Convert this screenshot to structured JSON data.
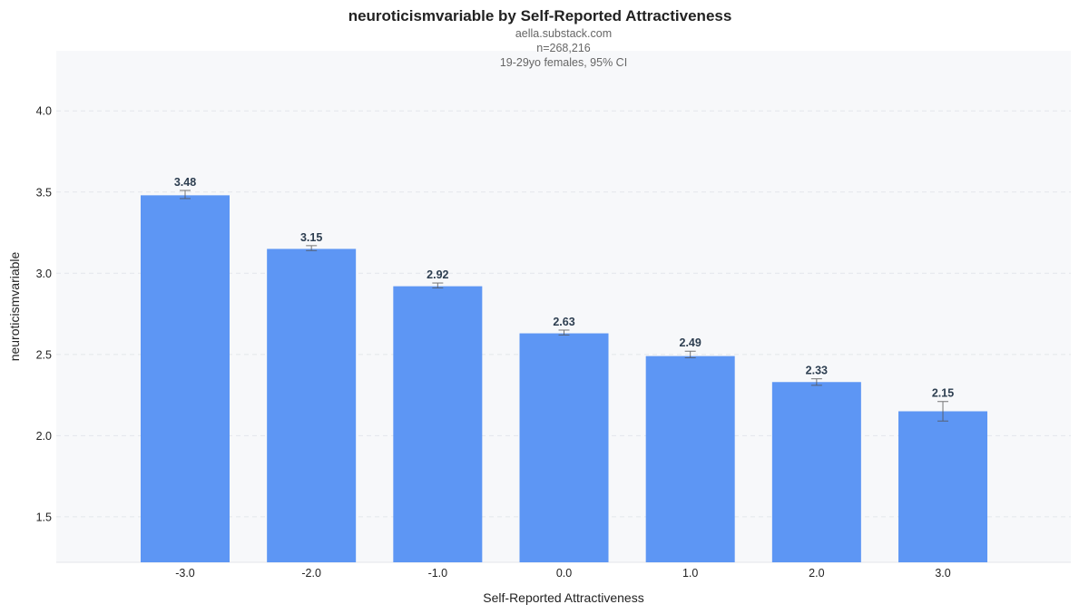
{
  "chart_data": {
    "type": "bar",
    "title": "neuroticismvariable by Self-Reported Attractiveness",
    "subtitle_lines": [
      "aella.substack.com",
      "n=268,216",
      "19-29yo females, 95% CI"
    ],
    "xlabel": "Self-Reported Attractiveness",
    "ylabel": "neuroticismvariable",
    "categories": [
      "-3.0",
      "-2.0",
      "-1.0",
      "0.0",
      "1.0",
      "2.0",
      "3.0"
    ],
    "values": [
      3.48,
      3.15,
      2.92,
      2.63,
      2.49,
      2.33,
      2.15
    ],
    "value_labels": [
      "3.48",
      "3.15",
      "2.92",
      "2.63",
      "2.49",
      "2.33",
      "2.15"
    ],
    "error_low": [
      3.46,
      3.14,
      2.91,
      2.62,
      2.48,
      2.31,
      2.09
    ],
    "error_high": [
      3.51,
      3.17,
      2.94,
      2.65,
      2.52,
      2.35,
      2.21
    ],
    "ylim": [
      1.22,
      4.37
    ],
    "yticks": [
      1.5,
      2.0,
      2.5,
      3.0,
      3.5,
      4.0
    ],
    "ytick_labels": [
      "1.5",
      "2.0",
      "2.5",
      "3.0",
      "3.5",
      "4.0"
    ],
    "grid": true,
    "colors": {
      "bar": "#5d96f4",
      "plot_background": "#f7f8fa",
      "grid": "#e3e6eb",
      "error_bar": "#555555",
      "value_label": "#2d3e50"
    }
  }
}
